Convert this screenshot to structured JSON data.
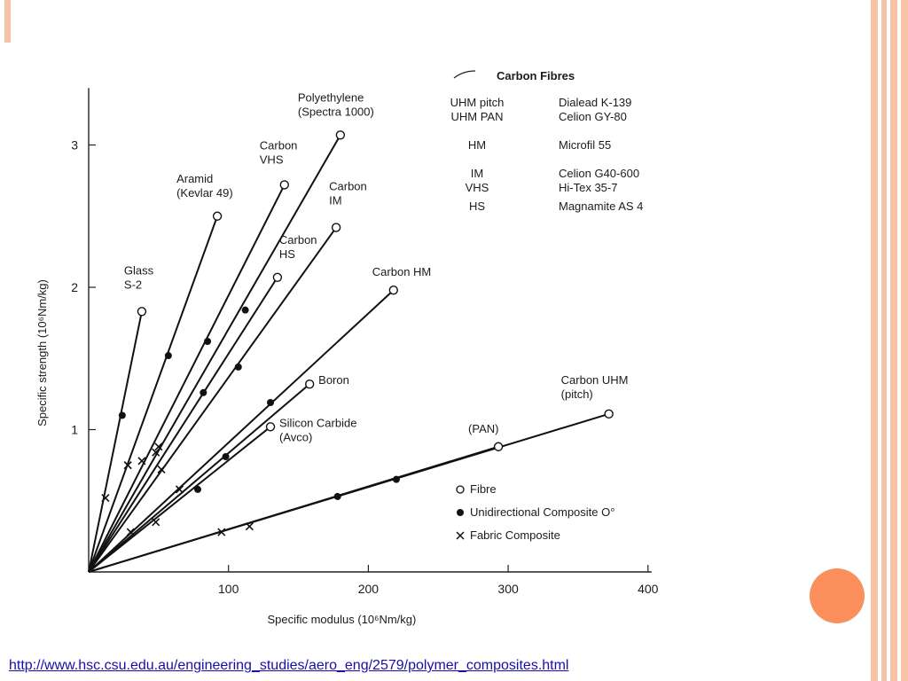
{
  "slide": {
    "source_url": "http://www.hsc.csu.edu.au/engineering_studies/aero_eng/2579/polymer_composites.html",
    "colors": {
      "accent_orange": "#fb8f5d",
      "bar_peach": "#f6c3a7",
      "link": "#1a0dab"
    }
  },
  "chart_data": {
    "type": "line",
    "title": "",
    "xlabel": "Specific modulus (10⁶Nm/kg)",
    "ylabel": "Specific strength (10⁶Nm/kg)",
    "xlim": [
      0,
      400
    ],
    "ylim": [
      0,
      3.4
    ],
    "xticks": [
      "100",
      "200",
      "300",
      "400"
    ],
    "yticks": [
      "1",
      "2",
      "3"
    ],
    "grid": false,
    "series": [
      {
        "name": "Glass S-2",
        "fibre": [
          38,
          1.83
        ],
        "composite": [
          24,
          1.1
        ],
        "fabric": [
          12,
          0.52
        ],
        "label_lines": [
          "Glass",
          "S-2"
        ]
      },
      {
        "name": "Aramid (Kevlar 49)",
        "fibre": [
          92,
          2.5
        ],
        "composite": [
          57,
          1.52
        ],
        "fabric": [
          28,
          0.75
        ],
        "label_lines": [
          "Aramid",
          "(Kevlar 49)"
        ]
      },
      {
        "name": "Polyethylene (Spectra 1000)",
        "fibre": [
          180,
          3.07
        ],
        "composite": [
          112,
          1.84
        ],
        "fabric": [
          50,
          0.88
        ],
        "label_lines": [
          "Polyethylene",
          "(Spectra 1000)"
        ]
      },
      {
        "name": "Carbon VHS",
        "fibre": [
          140,
          2.72
        ],
        "composite": [
          85,
          1.62
        ],
        "fabric": [
          38,
          0.78
        ],
        "label_lines": [
          "Carbon",
          "VHS"
        ]
      },
      {
        "name": "Carbon IM",
        "fibre": [
          177,
          2.42
        ],
        "composite": [
          82,
          1.26
        ],
        "fabric": [
          52,
          0.72
        ],
        "label_lines": [
          "Carbon",
          "IM"
        ]
      },
      {
        "name": "Carbon HS",
        "fibre": [
          135,
          2.07
        ],
        "composite": [
          107,
          1.44
        ],
        "fabric": [
          48,
          0.84
        ],
        "label_lines": [
          "Carbon",
          "HS"
        ]
      },
      {
        "name": "Carbon HM",
        "fibre": [
          218,
          1.98
        ],
        "composite": [
          130,
          1.19
        ],
        "fabric": [
          65,
          0.58
        ],
        "label_lines": [
          "Carbon HM"
        ]
      },
      {
        "name": "Boron",
        "fibre": [
          158,
          1.32
        ],
        "composite": [
          98,
          0.81
        ],
        "fabric": [
          48,
          0.35
        ],
        "label_lines": [
          "Boron"
        ]
      },
      {
        "name": "Silicon Carbide (Avco)",
        "fibre": [
          130,
          1.02
        ],
        "composite": [
          78,
          0.58
        ],
        "fabric": [
          30,
          0.28
        ],
        "label_lines": [
          "Silicon Carbide",
          "(Avco)"
        ]
      },
      {
        "name": "Carbon UHM (pitch)",
        "fibre": [
          372,
          1.11
        ],
        "composite": [
          220,
          0.65
        ],
        "fabric": [
          115,
          0.32
        ],
        "label_lines": [
          "Carbon UHM",
          "(pitch)"
        ]
      },
      {
        "name": "Carbon UHM (PAN)",
        "fibre": [
          293,
          0.88
        ],
        "composite": [
          178,
          0.53
        ],
        "fabric": [
          95,
          0.28
        ],
        "label_lines": [
          "(PAN)"
        ]
      }
    ],
    "table": {
      "heading": "Carbon Fibres",
      "rows": [
        [
          "UHM pitch",
          "Dialead K-139"
        ],
        [
          "UHM PAN",
          "Celion GY-80"
        ],
        [
          "HM",
          "Microfil 55"
        ],
        [
          "IM",
          "Celion G40-600"
        ],
        [
          "VHS",
          "Hi-Tex 35-7"
        ],
        [
          "HS",
          "Magnamite AS 4"
        ]
      ]
    },
    "legend": {
      "position": "bottom-right",
      "entries": [
        {
          "symbol": "open-circle",
          "label": "Fibre"
        },
        {
          "symbol": "filled-circle",
          "label": "Unidirectional Composite O°"
        },
        {
          "symbol": "cross",
          "label": "Fabric Composite"
        }
      ]
    }
  }
}
